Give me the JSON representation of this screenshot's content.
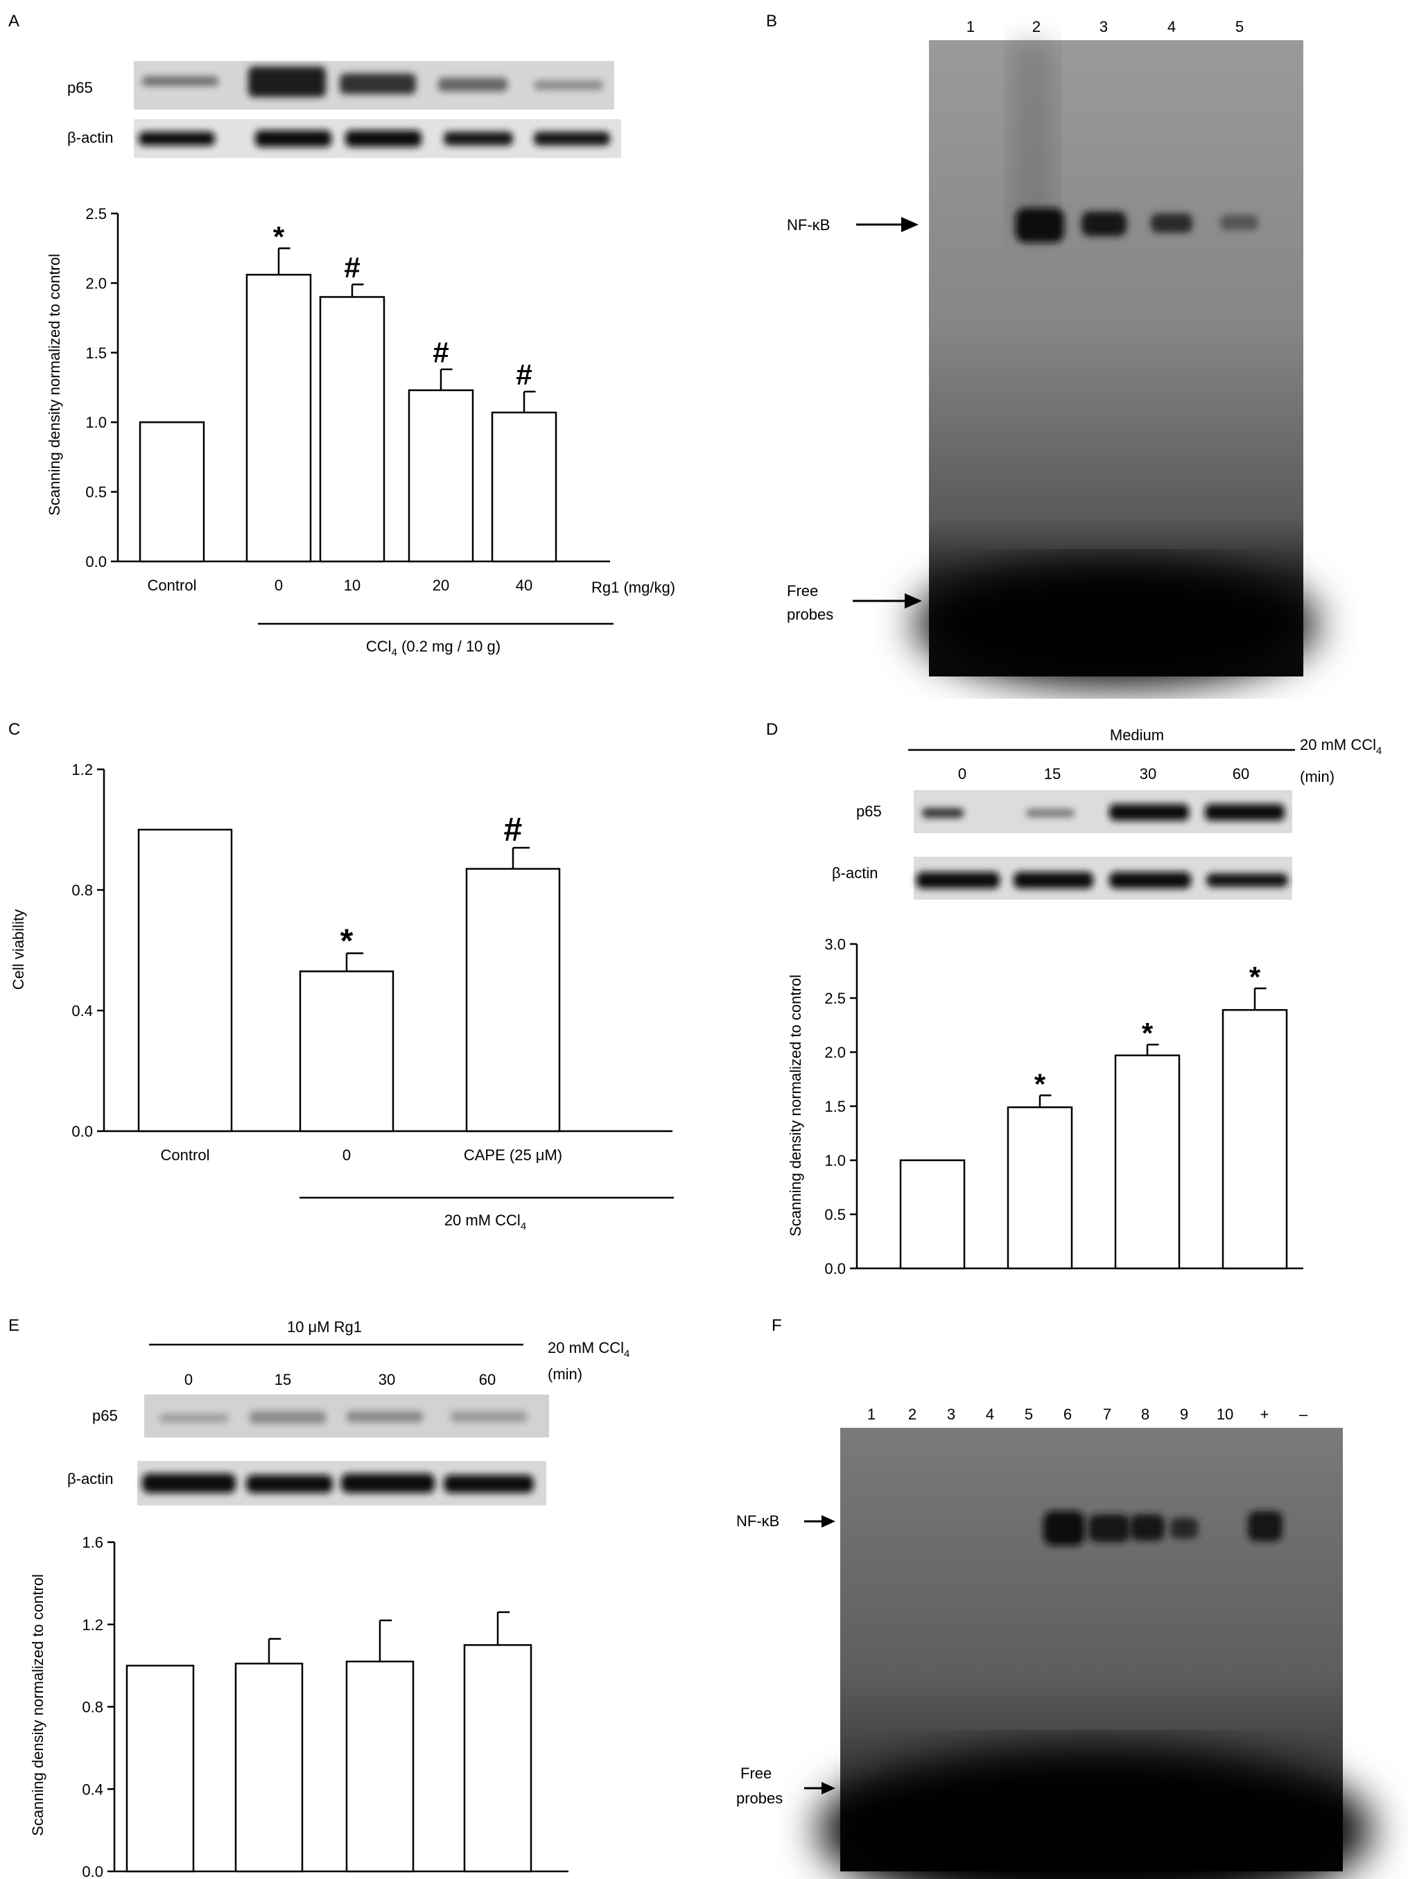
{
  "panels": {
    "A": {
      "letter": "A",
      "blot_labels": [
        "p65",
        "β-actin"
      ],
      "ylabel": "Scanning density normalized to control",
      "xtrailing": "Rg1 (mg/kg)",
      "group_label": "CCl",
      "group_sub": "4",
      "group_after": " (0.2 mg / 10 g)"
    },
    "B": {
      "letter": "B",
      "lanes": [
        "1",
        "2",
        "3",
        "4",
        "5"
      ],
      "nfkb": "NF-κB",
      "free1": "Free",
      "free2": "probes"
    },
    "C": {
      "letter": "C",
      "ylabel": "Cell viability",
      "group_label": "20 mM CCl",
      "group_sub": "4",
      "group_after": ""
    },
    "D": {
      "letter": "D",
      "top_label": "Medium",
      "cond_label": "20 mM CCl",
      "cond_sub": "4",
      "unit": "(min)",
      "times": [
        "0",
        "15",
        "30",
        "60"
      ],
      "blot_labels": [
        "p65",
        "β-actin"
      ],
      "ylabel": "Scanning density normalized to control"
    },
    "E": {
      "letter": "E",
      "top_label": "10 μM Rg1",
      "cond_label": "20 mM CCl",
      "cond_sub": "4",
      "unit": "(min)",
      "times": [
        "0",
        "15",
        "30",
        "60"
      ],
      "blot_labels": [
        "p65",
        "β-actin"
      ],
      "ylabel": "Scanning density normalized to control"
    },
    "F": {
      "letter": "F",
      "lanes": [
        "1",
        "2",
        "3",
        "4",
        "5",
        "6",
        "7",
        "8",
        "9",
        "10",
        "+",
        "–"
      ],
      "nfkb": "NF-κB",
      "free1": "Free",
      "free2": "probes"
    }
  },
  "colors": {
    "ink": "#000000",
    "bar_fill": "#ffffff",
    "gel_bg": "#8a8a8a",
    "gel_dark": "#101010"
  },
  "chart_data": [
    {
      "panel": "A",
      "type": "bar",
      "categories": [
        "Control",
        "0",
        "10",
        "20",
        "40"
      ],
      "values": [
        1.0,
        2.06,
        1.9,
        1.23,
        1.07
      ],
      "errors": [
        0,
        0.19,
        0.09,
        0.15,
        0.15
      ],
      "annotations": [
        "",
        "*",
        "#",
        "#",
        "#"
      ],
      "ylim": [
        0,
        2.5
      ],
      "yticks": [
        "0.0",
        "0.5",
        "1.0",
        "1.5",
        "2.0",
        "2.5"
      ],
      "xlabel": "Rg1 (mg/kg)",
      "ylabel": "Scanning density normalized to control"
    },
    {
      "panel": "C",
      "type": "bar",
      "categories": [
        "Control",
        "0",
        "CAPE (25 μM)"
      ],
      "values": [
        1.0,
        0.53,
        0.87
      ],
      "errors": [
        0,
        0.06,
        0.07
      ],
      "annotations": [
        "",
        "*",
        "#"
      ],
      "ylim": [
        0,
        1.2
      ],
      "yticks": [
        "0.0",
        "0.4",
        "0.8",
        "1.2"
      ],
      "ylabel": "Cell viability"
    },
    {
      "panel": "D",
      "type": "bar",
      "categories": [
        "0",
        "15",
        "30",
        "60"
      ],
      "values": [
        1.0,
        1.49,
        1.97,
        2.39
      ],
      "errors": [
        0,
        0.11,
        0.1,
        0.2
      ],
      "annotations": [
        "",
        "*",
        "*",
        "*"
      ],
      "ylim": [
        0,
        3.0
      ],
      "yticks": [
        "0.0",
        "0.5",
        "1.0",
        "1.5",
        "2.0",
        "2.5",
        "3.0"
      ],
      "ylabel": "Scanning density normalized to control"
    },
    {
      "panel": "E",
      "type": "bar",
      "categories": [
        "0",
        "15",
        "30",
        "60"
      ],
      "values": [
        1.0,
        1.01,
        1.02,
        1.1
      ],
      "errors": [
        0,
        0.12,
        0.2,
        0.16
      ],
      "annotations": [
        "",
        "",
        "",
        ""
      ],
      "ylim": [
        0,
        1.6
      ],
      "yticks": [
        "0.0",
        "0.4",
        "0.8",
        "1.2",
        "1.6"
      ],
      "ylabel": "Scanning density normalized to control"
    }
  ]
}
